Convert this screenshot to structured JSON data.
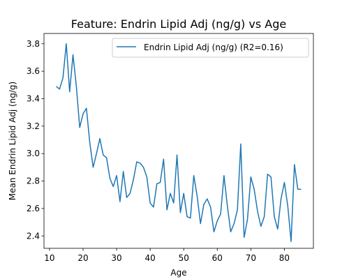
{
  "chart_data": {
    "type": "line",
    "title": "Feature: Endrin Lipid Adj (ng/g) vs Age",
    "xlabel": "Age",
    "ylabel": "Mean Endrin Lipid Adj (ng/g)",
    "xlim": [
      8.35,
      88.65
    ],
    "ylim": [
      2.31,
      3.875
    ],
    "x_ticks": [
      10,
      20,
      30,
      40,
      50,
      60,
      70,
      80
    ],
    "y_ticks": [
      "2.4",
      "2.6",
      "2.8",
      "3.0",
      "3.2",
      "3.4",
      "3.6",
      "3.8"
    ],
    "grid": false,
    "legend_position": "upper-right",
    "colors": {
      "series": "#1f77b4"
    },
    "series": [
      {
        "name": "Endrin Lipid Adj (ng/g) (R2=0.16)",
        "x": [
          12,
          13,
          14,
          15,
          16,
          17,
          18,
          19,
          20,
          21,
          22,
          23,
          24,
          25,
          26,
          27,
          28,
          29,
          30,
          31,
          32,
          33,
          34,
          35,
          36,
          37,
          38,
          39,
          40,
          41,
          42,
          43,
          44,
          45,
          46,
          47,
          48,
          49,
          50,
          51,
          52,
          53,
          54,
          55,
          56,
          57,
          58,
          59,
          60,
          61,
          62,
          63,
          64,
          65,
          66,
          67,
          68,
          69,
          70,
          71,
          72,
          73,
          74,
          75,
          76,
          77,
          78,
          79,
          80,
          81,
          82,
          83,
          84,
          85
        ],
        "y": [
          3.49,
          3.47,
          3.55,
          3.8,
          3.45,
          3.72,
          3.49,
          3.19,
          3.29,
          3.33,
          3.08,
          2.9,
          3.0,
          3.11,
          2.99,
          2.97,
          2.82,
          2.76,
          2.84,
          2.65,
          2.87,
          2.68,
          2.71,
          2.81,
          2.94,
          2.93,
          2.9,
          2.83,
          2.64,
          2.61,
          2.78,
          2.79,
          2.96,
          2.59,
          2.71,
          2.64,
          2.99,
          2.57,
          2.71,
          2.54,
          2.53,
          2.84,
          2.69,
          2.49,
          2.63,
          2.67,
          2.61,
          2.43,
          2.51,
          2.56,
          2.84,
          2.62,
          2.43,
          2.49,
          2.59,
          3.07,
          2.39,
          2.52,
          2.83,
          2.74,
          2.58,
          2.47,
          2.54,
          2.85,
          2.83,
          2.54,
          2.45,
          2.67,
          2.79,
          2.62,
          2.36,
          2.92,
          2.74,
          2.74
        ]
      }
    ]
  }
}
